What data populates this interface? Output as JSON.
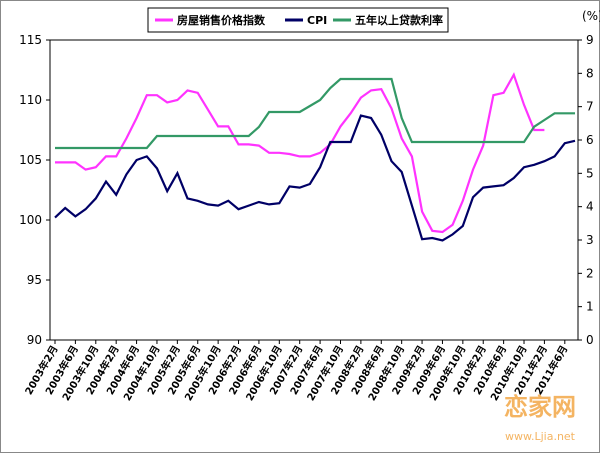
{
  "chart_data": {
    "type": "line",
    "y2_label": "(%)",
    "categories": [
      "2003年2月",
      null,
      "2003年6月",
      null,
      "2003年10月",
      null,
      "2004年2月",
      null,
      "2004年6月",
      null,
      "2004年10月",
      null,
      "2005年2月",
      null,
      "2005年6月",
      null,
      "2005年10月",
      null,
      "2006年2月",
      null,
      "2006年6月",
      null,
      "2006年10月",
      null,
      "2007年2月",
      null,
      "2007年6月",
      null,
      "2007年10月",
      null,
      "2008年2月",
      null,
      "2008年6月",
      null,
      "2008年10月",
      null,
      "2009年2月",
      null,
      "2009年6月",
      null,
      "2009年10月",
      null,
      "2010年2月",
      null,
      "2010年6月",
      null,
      "2010年10月",
      null,
      "2011年2月",
      null,
      "2011年6月",
      null
    ],
    "series": [
      {
        "name": "房屋销售价格指数",
        "color": "#ff33ff",
        "values": [
          104.8,
          104.8,
          104.8,
          104.2,
          104.4,
          105.3,
          105.3,
          106.8,
          108.5,
          110.4,
          110.4,
          109.8,
          110.0,
          110.8,
          110.6,
          109.2,
          107.8,
          107.8,
          106.3,
          106.3,
          106.2,
          105.6,
          105.6,
          105.5,
          105.3,
          105.3,
          105.6,
          106.3,
          107.8,
          108.9,
          110.2,
          110.8,
          110.9,
          109.3,
          106.8,
          105.3,
          100.7,
          99.1,
          99.0,
          99.6,
          101.6,
          104.2,
          106.2,
          110.4,
          110.6,
          112.1,
          109.6,
          107.5,
          107.5,
          null,
          null,
          null
        ]
      },
      {
        "name": "CPI",
        "color": "#000066",
        "values": [
          100.2,
          101.0,
          100.3,
          100.9,
          101.8,
          103.2,
          102.1,
          103.8,
          105.0,
          105.3,
          104.3,
          102.4,
          103.9,
          101.8,
          101.6,
          101.3,
          101.2,
          101.6,
          100.9,
          101.2,
          101.5,
          101.3,
          101.4,
          102.8,
          102.7,
          103.0,
          104.4,
          106.5,
          106.5,
          106.5,
          108.7,
          108.5,
          107.1,
          104.9,
          104.0,
          101.2,
          98.4,
          98.5,
          98.3,
          98.8,
          99.5,
          101.9,
          102.7,
          102.8,
          102.9,
          103.5,
          104.4,
          104.6,
          104.9,
          105.3,
          106.4,
          106.6
        ]
      },
      {
        "name": "五年以上贷款利率",
        "color": "#339966",
        "axis": "y2",
        "values": [
          5.76,
          5.76,
          5.76,
          5.76,
          5.76,
          5.76,
          5.76,
          5.76,
          5.76,
          5.76,
          6.12,
          6.12,
          6.12,
          6.12,
          6.12,
          6.12,
          6.12,
          6.12,
          6.12,
          6.12,
          6.39,
          6.84,
          6.84,
          6.84,
          6.84,
          7.02,
          7.2,
          7.56,
          7.83,
          7.83,
          7.83,
          7.83,
          7.83,
          7.83,
          6.66,
          5.94,
          5.94,
          5.94,
          5.94,
          5.94,
          5.94,
          5.94,
          5.94,
          5.94,
          5.94,
          5.94,
          5.94,
          6.4,
          6.6,
          6.8,
          6.8,
          6.8
        ]
      }
    ],
    "ylim": [
      90,
      115
    ],
    "yticks": [
      90,
      95,
      100,
      105,
      110,
      115
    ],
    "y2lim": [
      0,
      9
    ],
    "y2ticks": [
      0,
      1,
      2,
      3,
      4,
      5,
      6,
      7,
      8,
      9
    ],
    "legend": "top",
    "watermark": "恋家网",
    "watermark_url": "www.Ljia.net"
  }
}
